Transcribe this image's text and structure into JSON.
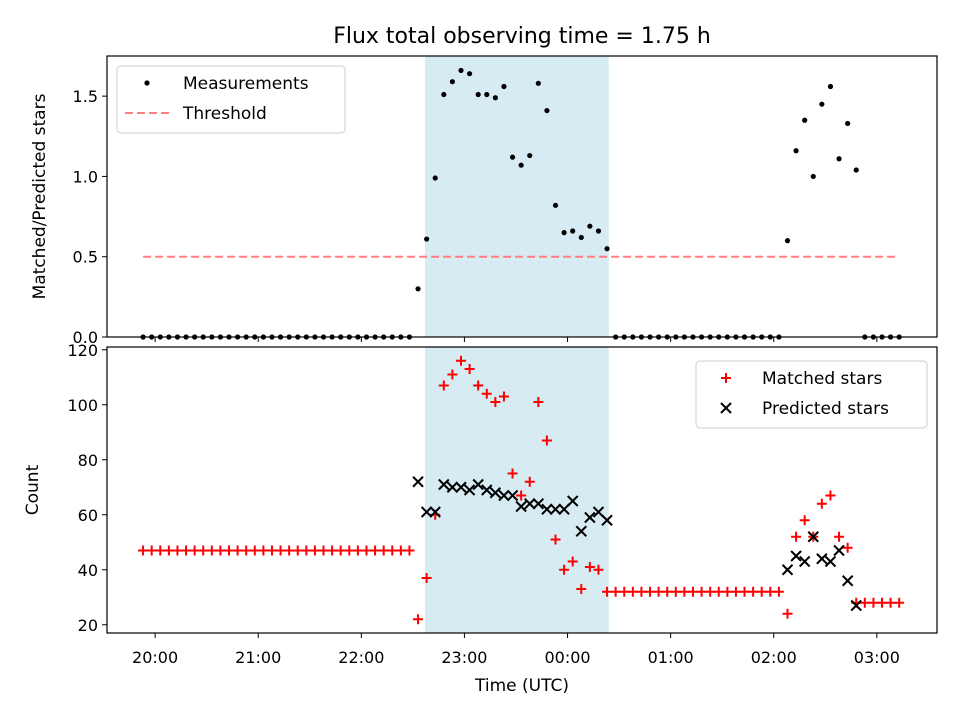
{
  "chart_data": {
    "title": "Flux total observing time = 1.75 h",
    "xlabel": "Time (UTC)",
    "x_ticks": [
      "20:00",
      "21:00",
      "22:00",
      "23:00",
      "00:00",
      "01:00",
      "02:00",
      "03:00"
    ],
    "observing_window": {
      "start": "22:37",
      "end": "00:24",
      "color": "#add8e6"
    },
    "panels": [
      {
        "type": "scatter",
        "ylabel": "Matched/Predicted stars",
        "ylim": [
          0,
          1.75
        ],
        "y_ticks": [
          "0.0",
          "0.5",
          "1.0",
          "1.5"
        ],
        "legend": "top-left",
        "threshold": {
          "name": "Threshold",
          "value": 0.5,
          "x_start": "19:53",
          "x_end": "03:13",
          "color": "#ff8080"
        },
        "series": [
          {
            "name": "Measurements",
            "color": "#000000",
            "marker": "dot",
            "points": [
              [
                "19:53",
                0
              ],
              [
                "19:58",
                0
              ],
              [
                "20:03",
                0
              ],
              [
                "20:08",
                0
              ],
              [
                "20:13",
                0
              ],
              [
                "20:18",
                0
              ],
              [
                "20:23",
                0
              ],
              [
                "20:28",
                0
              ],
              [
                "20:33",
                0
              ],
              [
                "20:38",
                0
              ],
              [
                "20:43",
                0
              ],
              [
                "20:48",
                0
              ],
              [
                "20:53",
                0
              ],
              [
                "20:58",
                0
              ],
              [
                "21:03",
                0
              ],
              [
                "21:08",
                0
              ],
              [
                "21:13",
                0
              ],
              [
                "21:18",
                0
              ],
              [
                "21:23",
                0
              ],
              [
                "21:28",
                0
              ],
              [
                "21:33",
                0
              ],
              [
                "21:38",
                0
              ],
              [
                "21:43",
                0
              ],
              [
                "21:48",
                0
              ],
              [
                "21:53",
                0
              ],
              [
                "21:58",
                0
              ],
              [
                "22:03",
                0
              ],
              [
                "22:08",
                0
              ],
              [
                "22:13",
                0
              ],
              [
                "22:18",
                0
              ],
              [
                "22:23",
                0
              ],
              [
                "22:28",
                0
              ],
              [
                "22:33",
                0.3
              ],
              [
                "22:38",
                0.61
              ],
              [
                "22:43",
                0.99
              ],
              [
                "22:48",
                1.51
              ],
              [
                "22:53",
                1.59
              ],
              [
                "22:58",
                1.66
              ],
              [
                "23:03",
                1.64
              ],
              [
                "23:08",
                1.51
              ],
              [
                "23:13",
                1.51
              ],
              [
                "23:18",
                1.49
              ],
              [
                "23:23",
                1.56
              ],
              [
                "23:28",
                1.12
              ],
              [
                "23:33",
                1.07
              ],
              [
                "23:38",
                1.13
              ],
              [
                "23:43",
                1.58
              ],
              [
                "23:48",
                1.41
              ],
              [
                "23:53",
                0.82
              ],
              [
                "23:58",
                0.65
              ],
              [
                "00:03",
                0.66
              ],
              [
                "00:08",
                0.62
              ],
              [
                "00:13",
                0.69
              ],
              [
                "00:18",
                0.66
              ],
              [
                "00:23",
                0.55
              ],
              [
                "00:28",
                0
              ],
              [
                "00:33",
                0
              ],
              [
                "00:38",
                0
              ],
              [
                "00:43",
                0
              ],
              [
                "00:48",
                0
              ],
              [
                "00:53",
                0
              ],
              [
                "00:58",
                0
              ],
              [
                "01:03",
                0
              ],
              [
                "01:08",
                0
              ],
              [
                "01:13",
                0
              ],
              [
                "01:18",
                0
              ],
              [
                "01:23",
                0
              ],
              [
                "01:28",
                0
              ],
              [
                "01:33",
                0
              ],
              [
                "01:38",
                0
              ],
              [
                "01:43",
                0
              ],
              [
                "01:48",
                0
              ],
              [
                "01:53",
                0
              ],
              [
                "01:58",
                0
              ],
              [
                "02:03",
                0
              ],
              [
                "02:08",
                0.6
              ],
              [
                "02:13",
                1.16
              ],
              [
                "02:18",
                1.35
              ],
              [
                "02:23",
                1.0
              ],
              [
                "02:28",
                1.45
              ],
              [
                "02:33",
                1.56
              ],
              [
                "02:38",
                1.11
              ],
              [
                "02:43",
                1.33
              ],
              [
                "02:48",
                1.04
              ],
              [
                "02:53",
                0
              ],
              [
                "02:58",
                0
              ],
              [
                "03:03",
                0
              ],
              [
                "03:08",
                0
              ],
              [
                "03:13",
                0
              ]
            ]
          }
        ]
      },
      {
        "type": "scatter",
        "ylabel": "Count",
        "ylim": [
          17,
          121
        ],
        "y_ticks": [
          "20",
          "40",
          "60",
          "80",
          "100",
          "120"
        ],
        "legend": "top-right",
        "series": [
          {
            "name": "Matched stars",
            "color": "#ff0000",
            "marker": "plus",
            "points": [
              [
                "19:53",
                47
              ],
              [
                "19:58",
                47
              ],
              [
                "20:03",
                47
              ],
              [
                "20:08",
                47
              ],
              [
                "20:13",
                47
              ],
              [
                "20:18",
                47
              ],
              [
                "20:23",
                47
              ],
              [
                "20:28",
                47
              ],
              [
                "20:33",
                47
              ],
              [
                "20:38",
                47
              ],
              [
                "20:43",
                47
              ],
              [
                "20:48",
                47
              ],
              [
                "20:53",
                47
              ],
              [
                "20:58",
                47
              ],
              [
                "21:03",
                47
              ],
              [
                "21:08",
                47
              ],
              [
                "21:13",
                47
              ],
              [
                "21:18",
                47
              ],
              [
                "21:23",
                47
              ],
              [
                "21:28",
                47
              ],
              [
                "21:33",
                47
              ],
              [
                "21:38",
                47
              ],
              [
                "21:43",
                47
              ],
              [
                "21:48",
                47
              ],
              [
                "21:53",
                47
              ],
              [
                "21:58",
                47
              ],
              [
                "22:03",
                47
              ],
              [
                "22:08",
                47
              ],
              [
                "22:13",
                47
              ],
              [
                "22:18",
                47
              ],
              [
                "22:23",
                47
              ],
              [
                "22:28",
                47
              ],
              [
                "22:33",
                22
              ],
              [
                "22:38",
                37
              ],
              [
                "22:43",
                60
              ],
              [
                "22:48",
                107
              ],
              [
                "22:53",
                111
              ],
              [
                "22:58",
                116
              ],
              [
                "23:03",
                113
              ],
              [
                "23:08",
                107
              ],
              [
                "23:13",
                104
              ],
              [
                "23:18",
                101
              ],
              [
                "23:23",
                103
              ],
              [
                "23:28",
                75
              ],
              [
                "23:33",
                67
              ],
              [
                "23:38",
                72
              ],
              [
                "23:43",
                101
              ],
              [
                "23:48",
                87
              ],
              [
                "23:53",
                51
              ],
              [
                "23:58",
                40
              ],
              [
                "00:03",
                43
              ],
              [
                "00:08",
                33
              ],
              [
                "00:13",
                41
              ],
              [
                "00:18",
                40
              ],
              [
                "00:23",
                32
              ],
              [
                "00:28",
                32
              ],
              [
                "00:33",
                32
              ],
              [
                "00:38",
                32
              ],
              [
                "00:43",
                32
              ],
              [
                "00:48",
                32
              ],
              [
                "00:53",
                32
              ],
              [
                "00:58",
                32
              ],
              [
                "01:03",
                32
              ],
              [
                "01:08",
                32
              ],
              [
                "01:13",
                32
              ],
              [
                "01:18",
                32
              ],
              [
                "01:23",
                32
              ],
              [
                "01:28",
                32
              ],
              [
                "01:33",
                32
              ],
              [
                "01:38",
                32
              ],
              [
                "01:43",
                32
              ],
              [
                "01:48",
                32
              ],
              [
                "01:53",
                32
              ],
              [
                "01:58",
                32
              ],
              [
                "02:03",
                32
              ],
              [
                "02:08",
                24
              ],
              [
                "02:13",
                52
              ],
              [
                "02:18",
                58
              ],
              [
                "02:23",
                52
              ],
              [
                "02:28",
                64
              ],
              [
                "02:33",
                67
              ],
              [
                "02:38",
                52
              ],
              [
                "02:43",
                48
              ],
              [
                "02:48",
                28
              ],
              [
                "02:53",
                28
              ],
              [
                "02:58",
                28
              ],
              [
                "03:03",
                28
              ],
              [
                "03:08",
                28
              ],
              [
                "03:13",
                28
              ]
            ]
          },
          {
            "name": "Predicted stars",
            "color": "#000000",
            "marker": "x",
            "points": [
              [
                "22:33",
                72
              ],
              [
                "22:38",
                61
              ],
              [
                "22:43",
                61
              ],
              [
                "22:48",
                71
              ],
              [
                "22:53",
                70
              ],
              [
                "22:58",
                70
              ],
              [
                "23:03",
                69
              ],
              [
                "23:08",
                71
              ],
              [
                "23:13",
                69
              ],
              [
                "23:18",
                68
              ],
              [
                "23:23",
                67
              ],
              [
                "23:28",
                67
              ],
              [
                "23:33",
                63
              ],
              [
                "23:38",
                64
              ],
              [
                "23:43",
                64
              ],
              [
                "23:48",
                62
              ],
              [
                "23:53",
                62
              ],
              [
                "23:58",
                62
              ],
              [
                "00:03",
                65
              ],
              [
                "00:08",
                54
              ],
              [
                "00:13",
                59
              ],
              [
                "00:18",
                61
              ],
              [
                "00:23",
                58
              ],
              [
                "02:08",
                40
              ],
              [
                "02:13",
                45
              ],
              [
                "02:18",
                43
              ],
              [
                "02:23",
                52
              ],
              [
                "02:28",
                44
              ],
              [
                "02:33",
                43
              ],
              [
                "02:38",
                47
              ],
              [
                "02:43",
                36
              ],
              [
                "02:48",
                27
              ]
            ]
          }
        ]
      }
    ]
  }
}
